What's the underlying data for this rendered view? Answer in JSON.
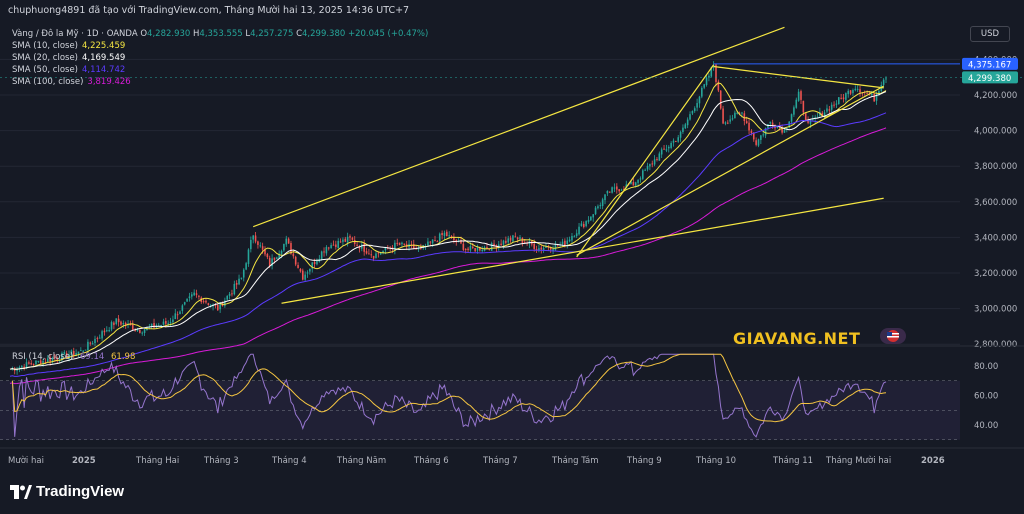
{
  "header": {
    "publisher_line": "chuphuong4891 đã tạo với TradingView.com, Tháng Mười hai 13, 2025 14:36 UTC+7"
  },
  "symbol": {
    "name": "Vàng / Đô la Mỹ · 1D · OANDA",
    "ohlc": [
      {
        "k": "O",
        "v": "4,282.930"
      },
      {
        "k": "H",
        "v": "4,353.555"
      },
      {
        "k": "L",
        "v": "4,257.275"
      },
      {
        "k": "C",
        "v": "4,299.380"
      }
    ],
    "change": "+20.045 (+0.47%)"
  },
  "currency": "USD",
  "indicators": [
    {
      "label": "SMA (10, close)",
      "value": "4,225.459",
      "color": "#f5e642"
    },
    {
      "label": "SMA (20, close)",
      "value": "4,169.549",
      "color": "#ffffff"
    },
    {
      "label": "SMA (50, close)",
      "value": "4,114.742",
      "color": "#5b3bff"
    },
    {
      "label": "SMA (100, close)",
      "value": "3,819.426",
      "color": "#d81bd8"
    }
  ],
  "rsi": {
    "label": "RSI (14, close)",
    "value1": "69.14",
    "value2": "61.98",
    "color1": "#9575cd",
    "color2": "#f5c542"
  },
  "watermark": "GIAVANG.NET",
  "brand": "TradingView",
  "colors": {
    "up": "#26a69a",
    "down": "#ef5350",
    "bg": "#161a25",
    "trend": "#f5e642",
    "hline": "#2962ff"
  },
  "chart_data": [
    {
      "type": "candlestick",
      "title": "Vàng / Đô la Mỹ · 1D · OANDA",
      "x_ticks": [
        "Mười hai",
        "2025",
        "Tháng Hai",
        "Tháng 3",
        "Tháng 4",
        "Tháng Năm",
        "Tháng 6",
        "Tháng 7",
        "Tháng Tám",
        "Tháng 9",
        "Tháng 10",
        "Tháng 11",
        "Tháng Mười hai",
        "2026"
      ],
      "y_ticks": [
        "2,800.000",
        "3,000.000",
        "3,200.000",
        "3,400.000",
        "3,600.000",
        "3,800.000",
        "4,000.000",
        "4,200.000",
        "4,400.000"
      ],
      "ylim": [
        2800,
        4500
      ],
      "price_labels": {
        "horizontal_line": "4,375.167",
        "last_price": "4,299.380"
      },
      "anchors": [
        [
          0,
          2660
        ],
        [
          30,
          2760
        ],
        [
          45,
          2930
        ],
        [
          55,
          2880
        ],
        [
          67,
          2920
        ],
        [
          78,
          3080
        ],
        [
          88,
          3000
        ],
        [
          98,
          3170
        ],
        [
          103,
          3420
        ],
        [
          110,
          3250
        ],
        [
          117,
          3380
        ],
        [
          124,
          3180
        ],
        [
          134,
          3350
        ],
        [
          144,
          3390
        ],
        [
          154,
          3300
        ],
        [
          164,
          3360
        ],
        [
          174,
          3330
        ],
        [
          184,
          3420
        ],
        [
          194,
          3330
        ],
        [
          204,
          3350
        ],
        [
          214,
          3400
        ],
        [
          224,
          3340
        ],
        [
          234,
          3360
        ],
        [
          244,
          3490
        ],
        [
          254,
          3660
        ],
        [
          264,
          3700
        ],
        [
          274,
          3850
        ],
        [
          284,
          3980
        ],
        [
          294,
          4250
        ],
        [
          298,
          4370
        ],
        [
          302,
          4050
        ],
        [
          310,
          4100
        ],
        [
          316,
          3930
        ],
        [
          322,
          4050
        ],
        [
          328,
          4000
        ],
        [
          334,
          4200
        ],
        [
          338,
          4030
        ],
        [
          345,
          4110
        ],
        [
          352,
          4180
        ],
        [
          358,
          4250
        ],
        [
          366,
          4180
        ],
        [
          370,
          4300
        ]
      ],
      "sma": [
        {
          "name": "SMA (10, close)",
          "period": 10,
          "color": "#f5e642"
        },
        {
          "name": "SMA (20, close)",
          "period": 20,
          "color": "#ffffff"
        },
        {
          "name": "SMA (50, close)",
          "period": 50,
          "color": "#5b3bff"
        },
        {
          "name": "SMA (100, close)",
          "period": 100,
          "color": "#d81bd8"
        }
      ]
    },
    {
      "type": "line",
      "title": "RSI (14, close)",
      "y_ticks": [
        "40.00",
        "60.00",
        "80.00"
      ],
      "ylim": [
        30,
        90
      ],
      "band": [
        30,
        70
      ]
    }
  ]
}
